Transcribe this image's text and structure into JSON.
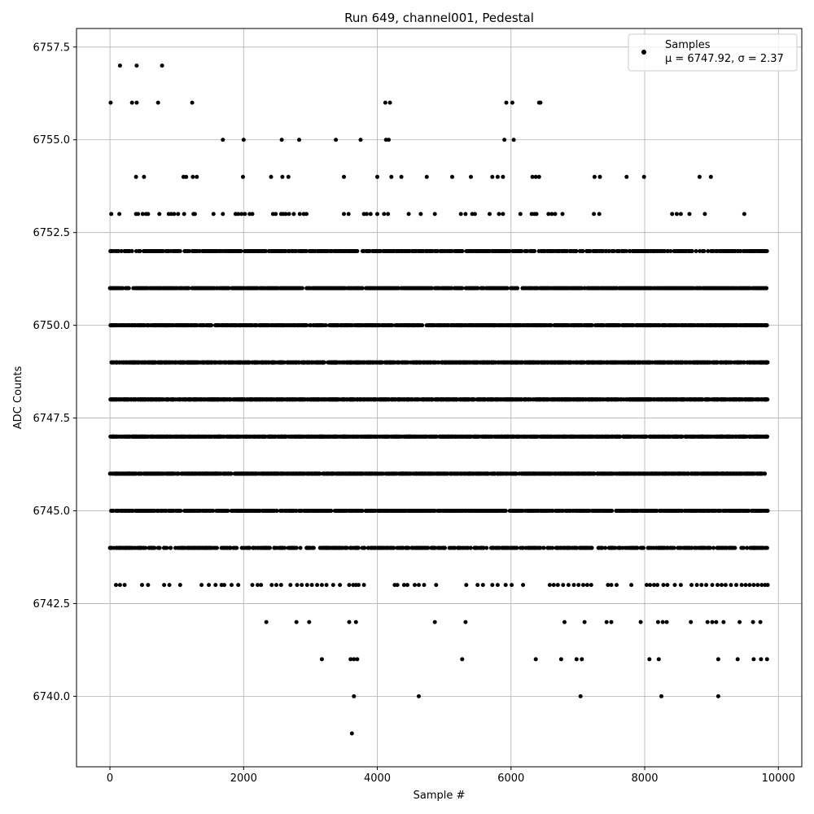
{
  "chart_data": {
    "type": "scatter",
    "title": "Run 649, channel001, Pedestal",
    "xlabel": "Sample #",
    "ylabel": "ADC Counts",
    "xlim": [
      -500,
      10350
    ],
    "ylim": [
      6738.1,
      6758.0
    ],
    "xticks": [
      0,
      2000,
      4000,
      6000,
      8000,
      10000
    ],
    "yticks": [
      6740.0,
      6742.5,
      6745.0,
      6747.5,
      6750.0,
      6752.5,
      6755.0,
      6757.5
    ],
    "xtick_labels": [
      "0",
      "2000",
      "4000",
      "6000",
      "8000",
      "10000"
    ],
    "ytick_labels": [
      "6740.0",
      "6742.5",
      "6745.0",
      "6747.5",
      "6750.0",
      "6752.5",
      "6755.0",
      "6757.5"
    ],
    "grid": true,
    "legend_position": "top-right",
    "marker_color": "#000000",
    "series": [
      {
        "name": "Samples",
        "stats_label": "μ = 6747.92, σ = 2.37",
        "x_range": [
          0,
          9840
        ],
        "level_counts": [
          {
            "y": 6752,
            "n": 800
          },
          {
            "y": 6751,
            "n": 1100
          },
          {
            "y": 6750,
            "n": 1200
          },
          {
            "y": 6749,
            "n": 1500
          },
          {
            "y": 6748,
            "n": 1600
          },
          {
            "y": 6747,
            "n": 1300
          },
          {
            "y": 6746,
            "n": 1200
          },
          {
            "y": 6745,
            "n": 1050
          },
          {
            "y": 6744,
            "n": 650
          }
        ],
        "sparse_points": {
          "6757": [
            150,
            400,
            780
          ],
          "6756": [
            10,
            330,
            400,
            720,
            1230,
            4120,
            4190,
            5930,
            6020,
            6420,
            6440
          ],
          "6755": [
            1690,
            2000,
            2570,
            2830,
            3380,
            3750,
            4130,
            4170,
            5900,
            6040
          ],
          "6754": [
            390,
            510,
            1100,
            1140,
            1240,
            1300,
            1990,
            2410,
            2580,
            2670,
            3500,
            4000,
            4210,
            4360,
            4740,
            5120,
            5400,
            5720,
            5800,
            5880,
            6320,
            6370,
            6420,
            7250,
            7330,
            7730,
            7990,
            8820,
            8990
          ],
          "6753": [
            20,
            140,
            390,
            420,
            490,
            540,
            570,
            740,
            880,
            920,
            960,
            1020,
            1110,
            1250,
            1270,
            1550,
            1690,
            1880,
            1920,
            1970,
            2020,
            2090,
            2130,
            2440,
            2480,
            2560,
            2590,
            2630,
            2680,
            2750,
            2840,
            2900,
            2940,
            3500,
            3570,
            3800,
            3840,
            3900,
            4000,
            4100,
            4160,
            4470,
            4650,
            4860,
            5250,
            5320,
            5420,
            5460,
            5680,
            5820,
            5880,
            6140,
            6310,
            6350,
            6380,
            6560,
            6610,
            6660,
            6770,
            7240,
            7320,
            8410,
            8480,
            8540,
            8670,
            8900,
            9490
          ],
          "6743": [
            90,
            150,
            220,
            480,
            570,
            810,
            890,
            1050,
            1370,
            1480,
            1580,
            1670,
            1710,
            1820,
            1920,
            2130,
            2210,
            2260,
            2420,
            2490,
            2560,
            2700,
            2800,
            2870,
            2950,
            3020,
            3100,
            3170,
            3240,
            3340,
            3440,
            3580,
            3640,
            3680,
            3720,
            3800,
            4260,
            4300,
            4400,
            4450,
            4560,
            4620,
            4700,
            4880,
            5330,
            5500,
            5580,
            5720,
            5800,
            5920,
            6010,
            6180,
            6580,
            6640,
            6700,
            6780,
            6860,
            6940,
            7010,
            7080,
            7140,
            7200,
            7450,
            7500,
            7580,
            7800,
            8030,
            8080,
            8140,
            8190,
            8280,
            8340,
            8450,
            8540,
            8700,
            8780,
            8850,
            8920,
            9010,
            9090,
            9150,
            9210,
            9290,
            9370,
            9450,
            9510,
            9570,
            9630,
            9690,
            9750,
            9800,
            9840
          ],
          "6742": [
            2340,
            2790,
            2980,
            3580,
            3680,
            4860,
            5320,
            6800,
            7100,
            7430,
            7500,
            7940,
            8200,
            8270,
            8330,
            8690,
            8940,
            9010,
            9070,
            9180,
            9420,
            9620,
            9730
          ],
          "6741": [
            3170,
            3600,
            3650,
            3700,
            5270,
            6370,
            6750,
            6980,
            7060,
            8070,
            8210,
            9100,
            9390,
            9630,
            9740,
            9830
          ],
          "6740": [
            3650,
            4620,
            7040,
            8250,
            9100
          ],
          "6739": [
            3620
          ]
        }
      }
    ]
  }
}
